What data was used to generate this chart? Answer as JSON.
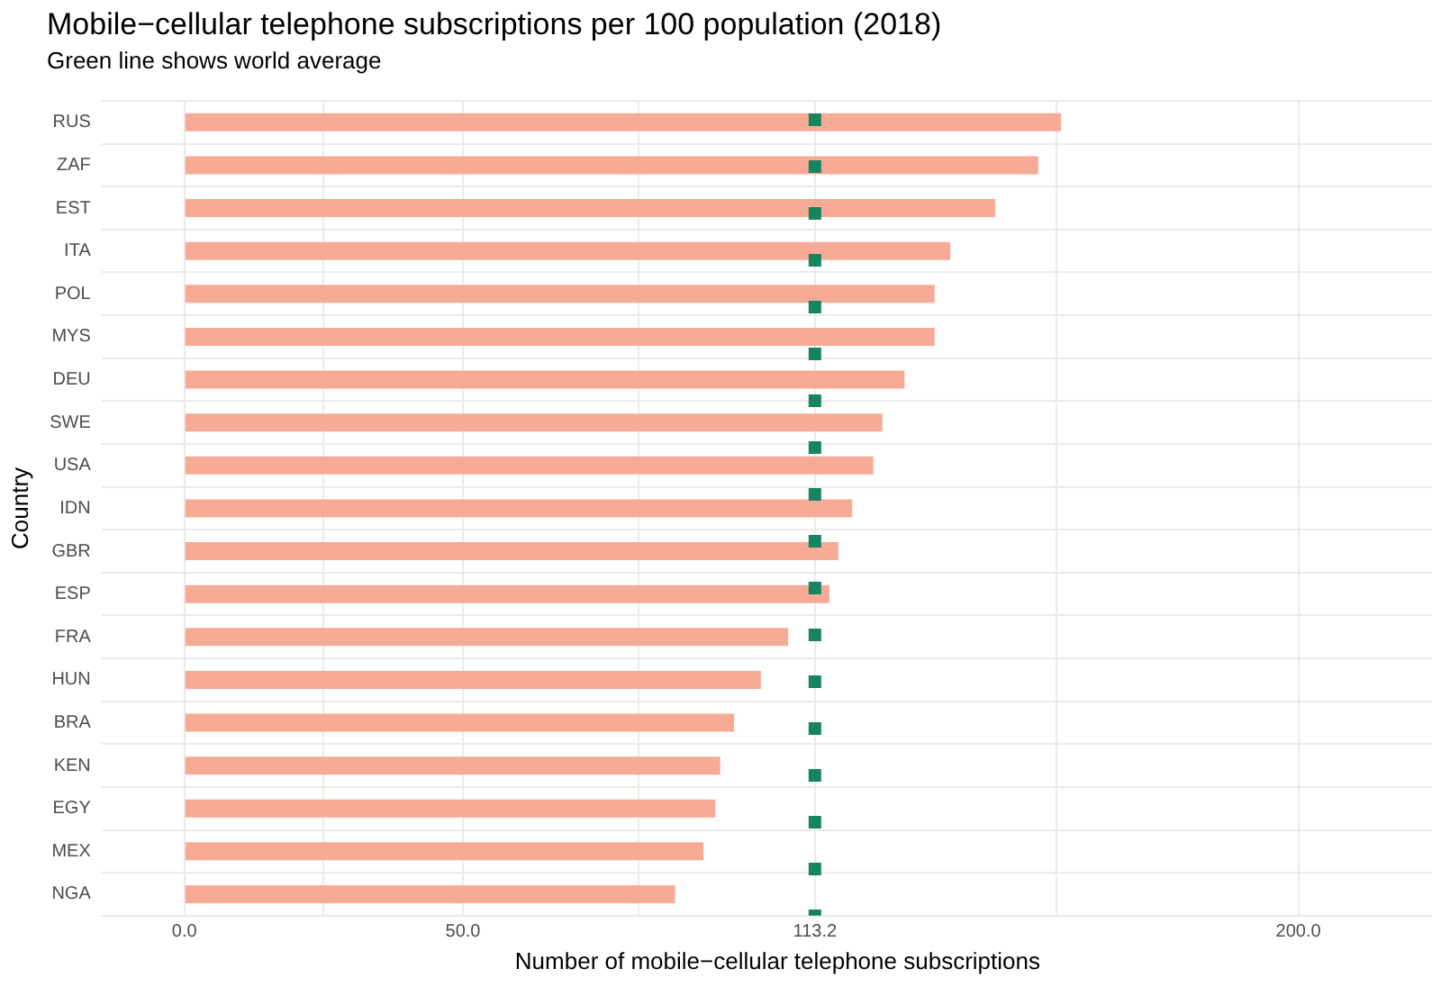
{
  "chart_data": {
    "type": "bar",
    "orientation": "horizontal",
    "title": "Mobile−cellular telephone subscriptions per 100 population (2018)",
    "subtitle": "Green line shows world average",
    "xlabel": "Number of mobile−cellular telephone subscriptions",
    "ylabel": "Country",
    "categories": [
      "RUS",
      "ZAF",
      "EST",
      "ITA",
      "POL",
      "MYS",
      "DEU",
      "SWE",
      "USA",
      "IDN",
      "GBR",
      "ESP",
      "FRA",
      "HUN",
      "BRA",
      "KEN",
      "EGY",
      "MEX",
      "NGA"
    ],
    "values": [
      157.4,
      153.3,
      145.6,
      137.5,
      134.7,
      134.7,
      129.3,
      125.3,
      123.7,
      119.9,
      117.4,
      115.8,
      108.4,
      103.5,
      98.7,
      96.2,
      95.3,
      93.2,
      88.1
    ],
    "color": "#f7ab96",
    "xlim": [
      -11,
      224
    ],
    "xticks": [
      {
        "value": 0,
        "label": "0.0"
      },
      {
        "value": 25,
        "label": null
      },
      {
        "value": 50,
        "label": "50.0"
      },
      {
        "value": 81.6,
        "label": null
      },
      113.2,
      {
        "value": 156.6,
        "label": null
      },
      {
        "value": 200,
        "label": "200.0"
      }
    ],
    "grid": true,
    "ref_lines": [
      {
        "axis": "x",
        "value": 113.2,
        "color": "#16845e",
        "line_style": "dashed"
      }
    ]
  }
}
